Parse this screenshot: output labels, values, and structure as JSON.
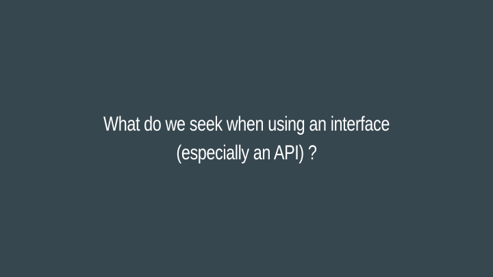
{
  "slide": {
    "background_color": "#37474f",
    "text_color": "#ffffff",
    "title_lines": [
      "What do we seek when using an interface",
      "(especially an API) ?"
    ]
  }
}
